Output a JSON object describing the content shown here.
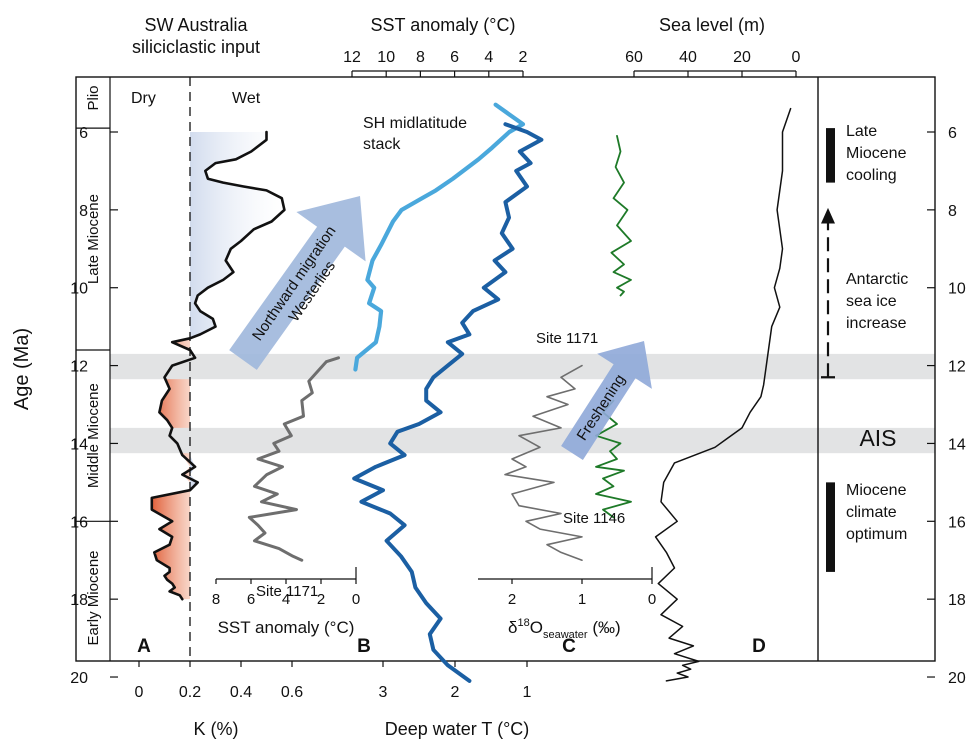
{
  "figure": {
    "age_axis": {
      "label": "Age (Ma)",
      "range": [
        5,
        20.5
      ],
      "ticks": [
        6,
        8,
        10,
        12,
        14,
        16,
        18,
        20
      ],
      "reversed": true
    },
    "epochs": [
      {
        "name": "Plio",
        "from": 5,
        "to": 5.9
      },
      {
        "name": "Late Miocene",
        "from": 5.9,
        "to": 11.6
      },
      {
        "name": "Middle Miocene",
        "from": 11.6,
        "to": 16.0
      },
      {
        "name": "Early Miocene",
        "from": 16.0,
        "to": 20.5
      }
    ],
    "bands": [
      {
        "from": 11.7,
        "to": 12.35
      },
      {
        "from": 13.6,
        "to": 14.25
      }
    ],
    "colors": {
      "black": "#111111",
      "sh_stack": "#4aa8dc",
      "deep_water": "#1b5fa3",
      "grey": "#6e6e6e",
      "green": "#1e7a28",
      "arrow": "#9fb7dc",
      "wet_fill": "#d2dcee",
      "dry_fill": "#e0603a",
      "band": "#e2e3e4"
    },
    "headers": {
      "k": "SW Australia\nsiliciclastic input",
      "sst_top": "SST anomaly (°C)",
      "sea_level": "Sea level (m)"
    },
    "labels": {
      "dry": "Dry",
      "wet": "Wet",
      "panel_a": "A",
      "panel_b": "B",
      "panel_c": "C",
      "panel_d": "D",
      "sh_stack": "SH midlatitude\nstack",
      "site_1171_b": "Site 1171",
      "site_1171_c": "Site 1171",
      "site_1146": "Site 1146",
      "arrow_westerlies": "Northward migration\nWesterlies",
      "arrow_freshening": "Freshening",
      "sst_bottom_label": "SST anomaly (°C)",
      "d18o_label_main": "δ",
      "d18o_label_sup": "18",
      "d18o_label_o": "O",
      "d18o_label_sub": "seawater",
      "d18o_label_unit": " (‰)",
      "k_axis_label": "K (%)",
      "deep_axis_label": "Deep water T (°C)"
    },
    "events": [
      {
        "text": "Late\nMiocene\ncooling",
        "from": 5.9,
        "to": 7.3
      },
      {
        "text": "Antarctic\nsea ice\nincrease",
        "from": 8.0,
        "to": 12.3,
        "style": "dashed-arrow"
      },
      {
        "text": "AIS",
        "age": 13.9
      },
      {
        "text": "Miocene\nclimate\noptimum",
        "from": 15.0,
        "to": 17.3
      }
    ],
    "axes": {
      "k_ticks": [
        "0",
        "0.2",
        "0.4",
        "0.6"
      ],
      "deep_ticks": [
        "3",
        "2",
        "1"
      ],
      "sst_top_ticks": [
        "12",
        "10",
        "8",
        "6",
        "4",
        "2"
      ],
      "sea_level_ticks": [
        "60",
        "40",
        "20",
        "0"
      ],
      "sst_bottom_ticks": [
        "8",
        "6",
        "4",
        "2",
        "0"
      ],
      "d18o_ticks": [
        "2",
        "1",
        "0"
      ]
    }
  },
  "chart_data": [
    {
      "type": "line",
      "panel": "A",
      "title": "SW Australia siliciclastic input",
      "xlabel": "K (%)",
      "ylabel": "Age (Ma)",
      "xlim": [
        -0.1,
        0.7
      ],
      "ylim": [
        20.5,
        5
      ],
      "threshold": 0.2,
      "series": [
        {
          "x": [
            0.5,
            0.5,
            0.44,
            0.38,
            0.3,
            0.26,
            0.27,
            0.33,
            0.41,
            0.5,
            0.56,
            0.57,
            0.52,
            0.45,
            0.4,
            0.36,
            0.34,
            0.37,
            0.33,
            0.27,
            0.23,
            0.22,
            0.24,
            0.29,
            0.3,
            0.24,
            0.2,
            0.13,
            0.2,
            0.22,
            0.13,
            0.1,
            0.12,
            0.09,
            0.08,
            0.11,
            0.13,
            0.12,
            0.15,
            0.17,
            0.22,
            0.17,
            0.23,
            0.2,
            0.05,
            0.05,
            0.13,
            0.08,
            0.13,
            0.12,
            0.06,
            0.07,
            0.12,
            0.12,
            0.1,
            0.11,
            0.13,
            0.14,
            0.12,
            0.16,
            0.17
          ],
          "y": [
            6.0,
            6.2,
            6.5,
            6.7,
            6.8,
            7.0,
            7.2,
            7.3,
            7.4,
            7.5,
            7.7,
            8.0,
            8.3,
            8.5,
            8.8,
            9.0,
            9.3,
            9.6,
            9.8,
            10.0,
            10.2,
            10.4,
            10.6,
            10.8,
            11.0,
            11.2,
            11.3,
            11.4,
            11.6,
            11.8,
            12.0,
            12.3,
            12.6,
            12.9,
            13.2,
            13.4,
            13.6,
            13.8,
            14.0,
            14.3,
            14.6,
            14.8,
            15.0,
            15.2,
            15.4,
            15.7,
            16.0,
            16.2,
            16.4,
            16.6,
            16.8,
            17.0,
            17.2,
            17.3,
            17.4,
            17.5,
            17.6,
            17.7,
            17.8,
            17.9,
            18.0
          ]
        }
      ]
    },
    {
      "type": "line",
      "panel": "B",
      "title": "SST anomaly (°C)",
      "xlim": [
        12.5,
        0
      ],
      "ylim": [
        20.5,
        5
      ],
      "series": [
        {
          "name": "SH midlatitude stack",
          "x": [
            3.6,
            2.0,
            2.8,
            3.8,
            4.6,
            6.1,
            7.1,
            7.9,
            9.1,
            9.6,
            10.3,
            10.8,
            11.1,
            10.7,
            11.0,
            10.3,
            10.4,
            10.6,
            11.7,
            11.8
          ],
          "y": [
            5.3,
            5.8,
            6.0,
            6.4,
            6.7,
            7.2,
            7.5,
            7.7,
            8.0,
            8.3,
            8.9,
            9.3,
            9.8,
            10.0,
            10.4,
            10.6,
            11.0,
            11.4,
            11.8,
            12.1
          ]
        },
        {
          "name": "Site 1171",
          "x": [
            1.0,
            1.7,
            2.1,
            2.7,
            2.5,
            3.1,
            3.0,
            4.1,
            3.7,
            4.7,
            4.4,
            5.6,
            4.2,
            5.1,
            5.8,
            4.5,
            5.4,
            3.4,
            6.1,
            5.6,
            5.2,
            5.8,
            4.4,
            3.6,
            3.1
          ],
          "y": [
            11.8,
            11.9,
            12.1,
            12.4,
            12.7,
            12.9,
            13.3,
            13.5,
            13.8,
            14.0,
            14.2,
            14.4,
            14.6,
            14.8,
            15.1,
            15.3,
            15.5,
            15.7,
            15.9,
            16.1,
            16.3,
            16.5,
            16.7,
            16.9,
            17.0
          ]
        }
      ]
    },
    {
      "type": "line",
      "panel": "B",
      "xlabel": "Deep water T (°C)",
      "xlim": [
        3.9,
        0.2
      ],
      "ylim": [
        20.5,
        5
      ],
      "series": [
        {
          "name": "Deep water T",
          "x": [
            1.3,
            1.0,
            0.8,
            1.1,
            0.95,
            1.15,
            1.0,
            1.3,
            1.25,
            1.35,
            1.2,
            1.45,
            1.3,
            1.6,
            1.4,
            1.75,
            1.9,
            1.8,
            2.1,
            1.9,
            2.1,
            2.3,
            2.4,
            2.4,
            2.2,
            2.5,
            2.8,
            2.9,
            2.7,
            3.1,
            3.4,
            3.0,
            3.3,
            2.9,
            2.7,
            2.95,
            2.75,
            2.6,
            2.55,
            2.4,
            2.2,
            2.35,
            2.3,
            2.1,
            1.8
          ],
          "y": [
            5.8,
            6.0,
            6.2,
            6.5,
            6.8,
            7.0,
            7.4,
            7.8,
            8.2,
            8.6,
            9.0,
            9.3,
            9.6,
            10.0,
            10.3,
            10.6,
            10.9,
            11.2,
            11.4,
            11.7,
            12.0,
            12.3,
            12.6,
            12.9,
            13.2,
            13.5,
            13.7,
            14.0,
            14.3,
            14.6,
            14.9,
            15.2,
            15.5,
            15.8,
            16.1,
            16.5,
            16.9,
            17.3,
            17.7,
            18.1,
            18.5,
            18.9,
            19.3,
            19.7,
            20.1
          ]
        }
      ]
    },
    {
      "type": "line",
      "panel": "C",
      "xlabel": "δ18O seawater (‰)",
      "xlim": [
        2.6,
        0
      ],
      "ylim": [
        20.5,
        5
      ],
      "series": [
        {
          "name": "Site 1171",
          "x": [
            1.0,
            1.3,
            1.1,
            1.5,
            1.2,
            1.7,
            1.3,
            1.9,
            1.6,
            2.0,
            1.8,
            2.1,
            1.4,
            2.0,
            1.9,
            1.3,
            1.8,
            1.6,
            1.0,
            1.5,
            1.3,
            1.0
          ],
          "y": [
            12.0,
            12.3,
            12.6,
            12.8,
            13.0,
            13.3,
            13.6,
            13.8,
            14.1,
            14.4,
            14.6,
            14.8,
            15.0,
            15.3,
            15.6,
            15.8,
            16.0,
            16.2,
            16.4,
            16.6,
            16.8,
            17.0
          ]
        },
        {
          "name": "Site 1146",
          "x": [
            0.55,
            0.7,
            0.5,
            0.8,
            0.45,
            0.6,
            0.5,
            0.8,
            0.4,
            0.7,
            0.55,
            0.8,
            0.3,
            0.7,
            0.55
          ],
          "y": [
            12.9,
            13.2,
            13.5,
            13.8,
            14.0,
            14.2,
            14.4,
            14.6,
            14.7,
            14.9,
            15.1,
            15.3,
            15.5,
            15.7,
            15.9
          ]
        },
        {
          "name": "Site 1146 (upper)",
          "x": [
            0.5,
            0.45,
            0.52,
            0.4,
            0.55,
            0.35,
            0.5,
            0.3,
            0.58,
            0.4,
            0.55,
            0.3,
            0.5,
            0.4,
            0.45
          ],
          "y": [
            6.1,
            6.5,
            6.9,
            7.3,
            7.7,
            8.0,
            8.4,
            8.8,
            9.1,
            9.4,
            9.6,
            9.8,
            10.0,
            10.1,
            10.2
          ]
        }
      ]
    },
    {
      "type": "line",
      "panel": "D",
      "title": "Sea level (m)",
      "xlim": [
        64,
        -4
      ],
      "ylim": [
        20.5,
        5
      ],
      "series": [
        {
          "name": "Sea level",
          "x": [
            2,
            5,
            5,
            7,
            5,
            6,
            8,
            6,
            9,
            10,
            11,
            12,
            13,
            17,
            20,
            26,
            30,
            45,
            49,
            50,
            44,
            52,
            48,
            45,
            51,
            44,
            50,
            42,
            47,
            38,
            45,
            36,
            42,
            39,
            44,
            40,
            48
          ],
          "y": [
            5.4,
            6.0,
            7.0,
            8.0,
            9.0,
            9.5,
            10.0,
            10.5,
            11.0,
            11.5,
            12.0,
            12.5,
            12.8,
            13.2,
            13.6,
            13.9,
            14.1,
            14.5,
            15.0,
            15.5,
            16.0,
            16.4,
            16.8,
            17.2,
            17.6,
            18.0,
            18.4,
            18.7,
            19.0,
            19.2,
            19.4,
            19.6,
            19.7,
            19.8,
            19.9,
            20.0,
            20.1
          ]
        }
      ]
    }
  ]
}
